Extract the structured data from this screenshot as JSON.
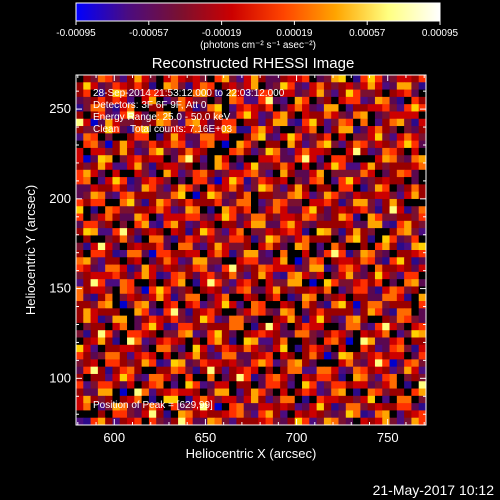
{
  "chart_data": {
    "type": "heatmap",
    "title": "Reconstructed RHESSI Image",
    "xlabel": "Heliocentric X (arcsec)",
    "ylabel": "Heliocentric Y (arcsec)",
    "xlim": [
      579,
      771
    ],
    "ylim": [
      74,
      269
    ],
    "x_ticks": [
      600,
      650,
      700,
      750
    ],
    "y_ticks": [
      100,
      150,
      200,
      250
    ],
    "grid": false,
    "colorbar": {
      "position": "top",
      "min": -0.00095,
      "max": 0.00095,
      "tick_values": [
        -0.00095,
        -0.00057,
        -0.00019,
        0.00019,
        0.00057,
        0.00095
      ],
      "tick_labels": [
        "-0.00095",
        "-0.00057",
        "-0.00019",
        "0.00019",
        "0.00057",
        "0.00095"
      ],
      "units_label": "(photons cm⁻² s⁻¹ asec⁻²)",
      "colors": [
        "#0000ff",
        "#4b0c80",
        "#7a1030",
        "#cc0000",
        "#ff4500",
        "#ffa500",
        "#ffff80",
        "#ffffff"
      ]
    },
    "annotations": [
      "28-Sep-2014 21:53:12.000 to 22:03:12.000",
      "Detectors: 3F 6F 9F, Att 0",
      "Energy Range: 25.0 - 50.0 keV",
      "Clean    Total counts: 7.16E+03"
    ],
    "peak_annotation": "Position of Peak = [629,99]",
    "peak_position": [
      629,
      99
    ]
  },
  "footer": {
    "timestamp": "21-May-2017 10:12"
  }
}
